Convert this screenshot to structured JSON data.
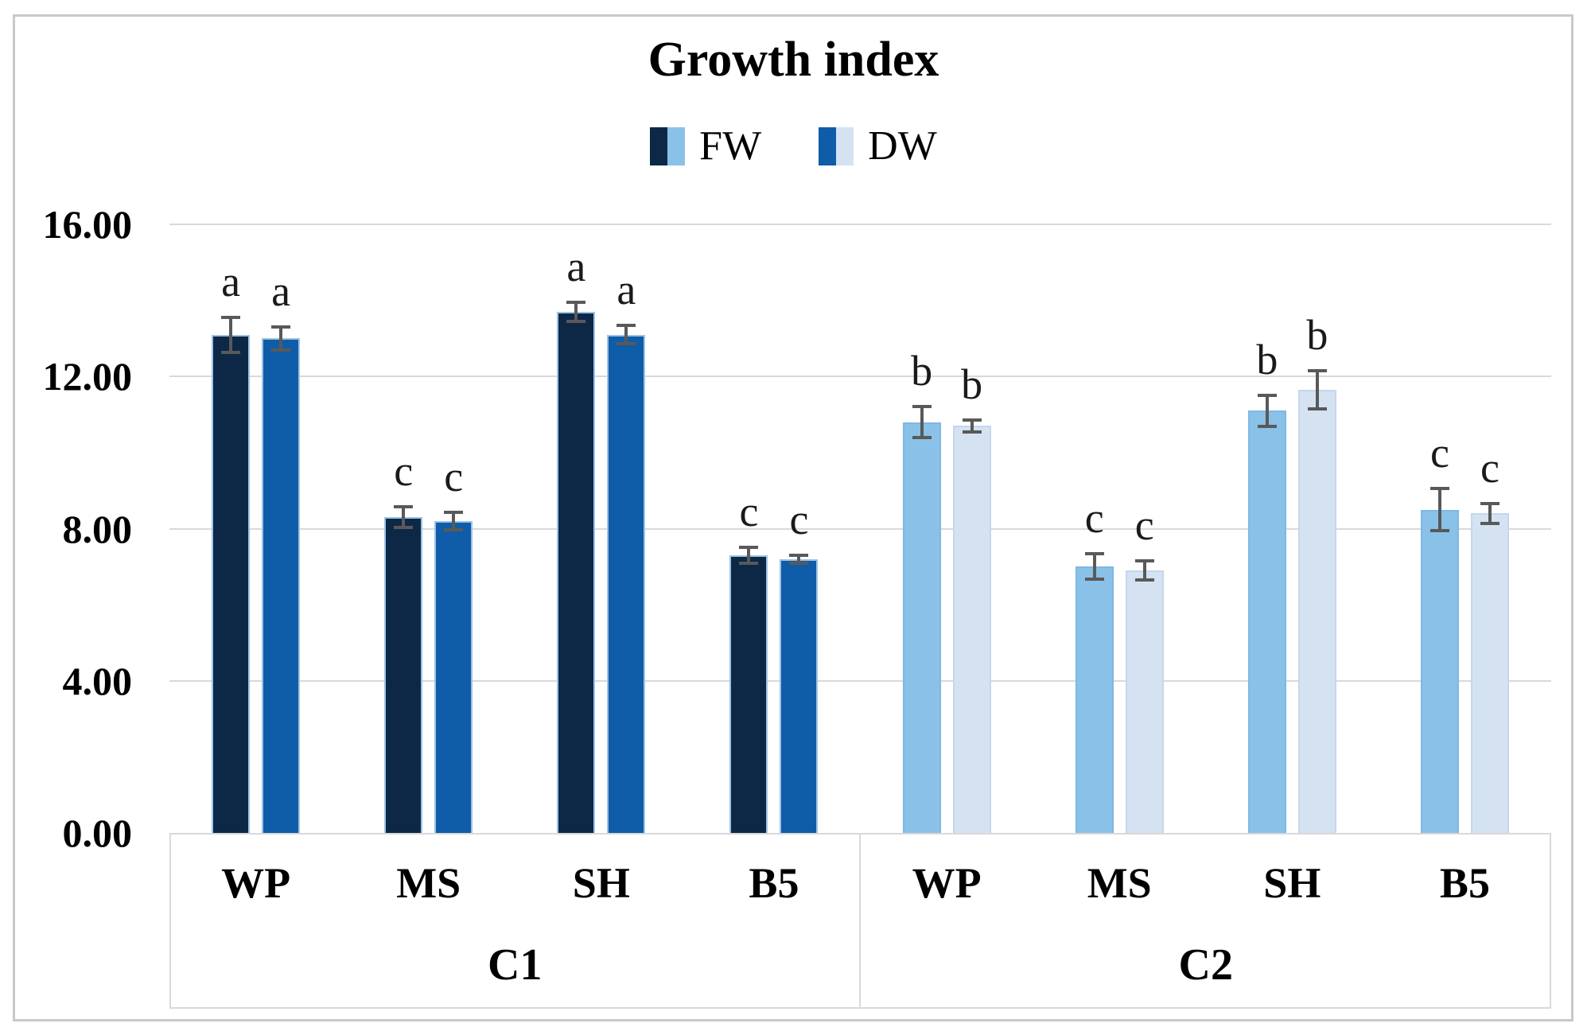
{
  "chart_data": {
    "type": "bar",
    "title": "Growth index",
    "groups": [
      "C1",
      "C2"
    ],
    "categories": [
      "WP",
      "MS",
      "SH",
      "B5"
    ],
    "series": [
      {
        "name": "FW",
        "colors": {
          "C1": "#0d2847",
          "C2": "#8ac1e8"
        },
        "border_colors": {
          "C1": "#9dc3e6",
          "C2": "#7fb8e4"
        },
        "values": {
          "C1": [
            13.1,
            8.3,
            13.7,
            7.3
          ],
          "C2": [
            10.8,
            7.0,
            11.1,
            8.5
          ]
        },
        "errors": {
          "C1": [
            0.5,
            0.32,
            0.3,
            0.25
          ],
          "C2": [
            0.45,
            0.38,
            0.45,
            0.6
          ]
        },
        "letters": {
          "C1": [
            "a",
            "c",
            "a",
            "c"
          ],
          "C2": [
            "b",
            "c",
            "b",
            "c"
          ]
        }
      },
      {
        "name": "DW",
        "colors": {
          "C1": "#0f5ca8",
          "C2": "#d5e2f2"
        },
        "border_colors": {
          "C1": "#9dc3e6",
          "C2": "#c3d7ee"
        },
        "values": {
          "C1": [
            13.0,
            8.2,
            13.1,
            7.2
          ],
          "C2": [
            10.7,
            6.9,
            11.65,
            8.4
          ]
        },
        "errors": {
          "C1": [
            0.35,
            0.28,
            0.28,
            0.15
          ],
          "C2": [
            0.2,
            0.3,
            0.55,
            0.3
          ]
        },
        "letters": {
          "C1": [
            "a",
            "c",
            "a",
            "c"
          ],
          "C2": [
            "b",
            "c",
            "b",
            "c"
          ]
        }
      }
    ],
    "y_axis": {
      "min": 0,
      "max": 16,
      "step": 4,
      "tick_labels": [
        "0.00",
        "4.00",
        "8.00",
        "12.00",
        "16.00"
      ]
    },
    "legend_position": "top",
    "grid": true,
    "gridline_color": "#d9d9d9",
    "error_bar_color": "#595959"
  }
}
